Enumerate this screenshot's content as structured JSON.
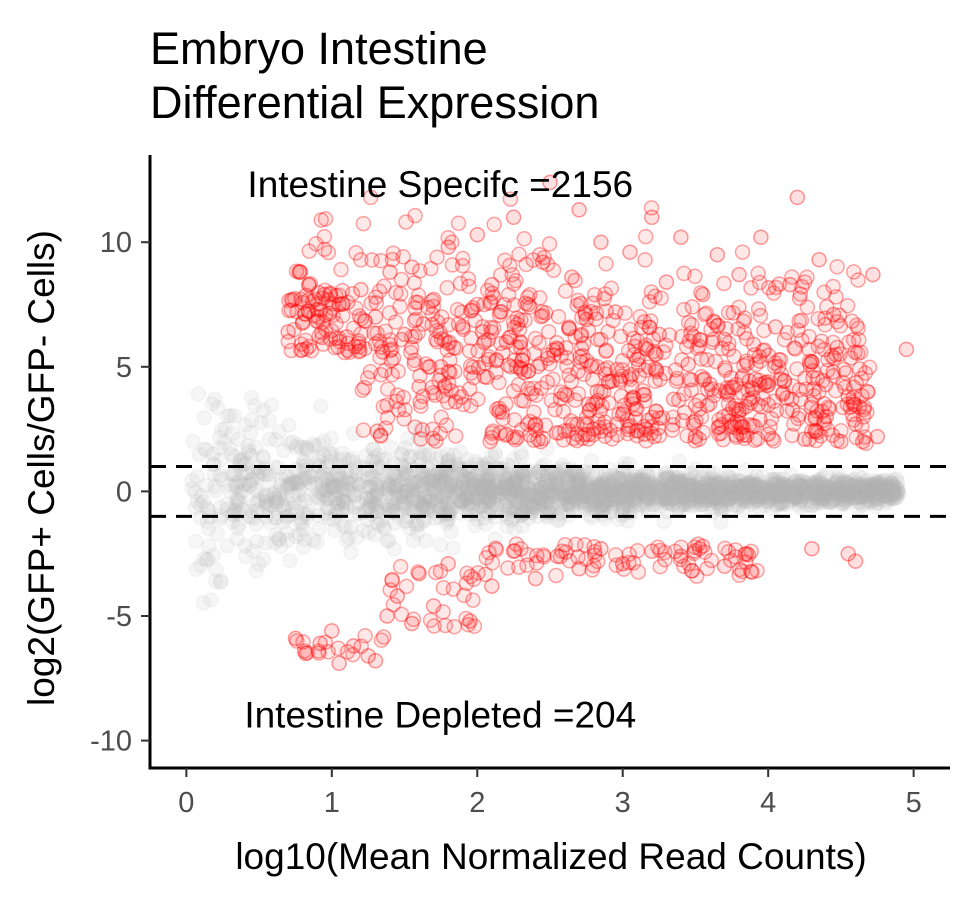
{
  "title_lines": [
    "Embryo Intestine",
    "Differential Expression"
  ],
  "chart_data": {
    "type": "scatter",
    "xlabel": "log10(Mean Normalized Read Counts)",
    "ylabel": "log2(GFP+ Cells/GFP- Cells)",
    "xlim": [
      -0.25,
      5.25
    ],
    "ylim": [
      -11.1,
      13.5
    ],
    "x_ticks": [
      0,
      1,
      2,
      3,
      4,
      5
    ],
    "y_ticks": [
      -10,
      -5,
      0,
      5,
      10
    ],
    "x_tick_labels": [
      "0",
      "1",
      "2",
      "3",
      "4",
      "5"
    ],
    "y_tick_labels": [
      "-10",
      "-5",
      "0",
      "5",
      "10"
    ],
    "grid": false,
    "threshold_lines": [
      1,
      -1
    ],
    "annotations": [
      {
        "text": "Intestine Specifc =2156",
        "x": 2.0,
        "y": 12.3
      },
      {
        "text": "Intestine Depleted =204",
        "x": 2.0,
        "y": -9.0
      }
    ],
    "series": [
      {
        "group": "not-significant",
        "color": "#b3b3b3",
        "opacity": 0.12
      },
      {
        "group": "intestine-specific",
        "color": "#ff0000",
        "opacity": 0.13,
        "count": 2156
      },
      {
        "group": "intestine-depleted",
        "color": "#ff0000",
        "opacity": 0.13,
        "count": 204
      }
    ],
    "sample_points_specific": [
      [
        0.7,
        6.4
      ],
      [
        0.8,
        6.8
      ],
      [
        0.9,
        7.3
      ],
      [
        0.95,
        7.9
      ],
      [
        1.05,
        7.5
      ],
      [
        1.1,
        6.2
      ],
      [
        1.2,
        8.1
      ],
      [
        1.3,
        7.0
      ],
      [
        1.35,
        5.6
      ],
      [
        1.4,
        8.8
      ],
      [
        1.5,
        6.3
      ],
      [
        1.55,
        9.0
      ],
      [
        1.6,
        4.2
      ],
      [
        1.7,
        7.7
      ],
      [
        1.75,
        5.0
      ],
      [
        1.8,
        9.8
      ],
      [
        1.85,
        3.6
      ],
      [
        1.9,
        6.6
      ],
      [
        2.0,
        10.3
      ],
      [
        2.05,
        4.6
      ],
      [
        2.1,
        8.3
      ],
      [
        2.15,
        3.2
      ],
      [
        2.2,
        6.0
      ],
      [
        2.25,
        11.0
      ],
      [
        2.3,
        4.9
      ],
      [
        2.35,
        7.5
      ],
      [
        2.4,
        2.7
      ],
      [
        2.45,
        9.2
      ],
      [
        2.5,
        12.4
      ],
      [
        2.55,
        5.7
      ],
      [
        2.6,
        3.9
      ],
      [
        2.65,
        8.6
      ],
      [
        2.7,
        11.3
      ],
      [
        2.75,
        6.9
      ],
      [
        2.8,
        2.5
      ],
      [
        2.85,
        10.0
      ],
      [
        2.9,
        4.4
      ],
      [
        2.95,
        7.2
      ],
      [
        3.0,
        3.1
      ],
      [
        3.05,
        9.6
      ],
      [
        3.1,
        5.3
      ],
      [
        3.15,
        2.3
      ],
      [
        3.2,
        11.0
      ],
      [
        3.25,
        6.3
      ],
      [
        3.3,
        8.4
      ],
      [
        3.35,
        3.7
      ],
      [
        3.4,
        10.2
      ],
      [
        3.45,
        5.1
      ],
      [
        3.5,
        2.2
      ],
      [
        3.55,
        7.9
      ],
      [
        3.6,
        4.3
      ],
      [
        3.65,
        9.5
      ],
      [
        3.7,
        6.1
      ],
      [
        3.75,
        2.6
      ],
      [
        3.8,
        8.7
      ],
      [
        3.85,
        3.4
      ],
      [
        3.9,
        5.9
      ],
      [
        3.95,
        10.2
      ],
      [
        4.0,
        2.3
      ],
      [
        4.05,
        6.6
      ],
      [
        4.1,
        3.9
      ],
      [
        4.15,
        8.3
      ],
      [
        4.2,
        11.8
      ],
      [
        4.25,
        2.1
      ],
      [
        4.3,
        5.2
      ],
      [
        4.35,
        9.3
      ],
      [
        4.4,
        3.0
      ],
      [
        4.45,
        7.1
      ],
      [
        4.5,
        2.0
      ],
      [
        4.55,
        3.8
      ],
      [
        4.6,
        2.7
      ],
      [
        4.65,
        2.0
      ],
      [
        4.72,
        8.7
      ],
      [
        4.75,
        2.2
      ],
      [
        4.95,
        5.7
      ]
    ],
    "sample_points_depleted": [
      [
        0.75,
        -5.9
      ],
      [
        0.82,
        -6.5
      ],
      [
        0.92,
        -6.1
      ],
      [
        1.0,
        -5.6
      ],
      [
        1.05,
        -6.9
      ],
      [
        1.15,
        -6.2
      ],
      [
        1.25,
        -6.6
      ],
      [
        1.3,
        -6.8
      ],
      [
        1.38,
        -5.0
      ],
      [
        1.45,
        -4.2
      ],
      [
        1.55,
        -5.3
      ],
      [
        1.6,
        -3.3
      ],
      [
        1.7,
        -4.6
      ],
      [
        1.8,
        -2.9
      ],
      [
        1.95,
        -5.2
      ],
      [
        2.1,
        -3.8
      ],
      [
        2.25,
        -2.4
      ],
      [
        2.4,
        -3.5
      ],
      [
        2.55,
        -2.6
      ],
      [
        2.7,
        -3.1
      ],
      [
        2.85,
        -2.3
      ],
      [
        3.0,
        -2.9
      ],
      [
        3.2,
        -2.4
      ],
      [
        3.4,
        -2.6
      ],
      [
        3.55,
        -2.2
      ],
      [
        3.7,
        -3.0
      ],
      [
        3.85,
        -2.5
      ],
      [
        4.3,
        -2.3
      ],
      [
        4.6,
        -2.8
      ],
      [
        4.55,
        -2.5
      ]
    ]
  }
}
